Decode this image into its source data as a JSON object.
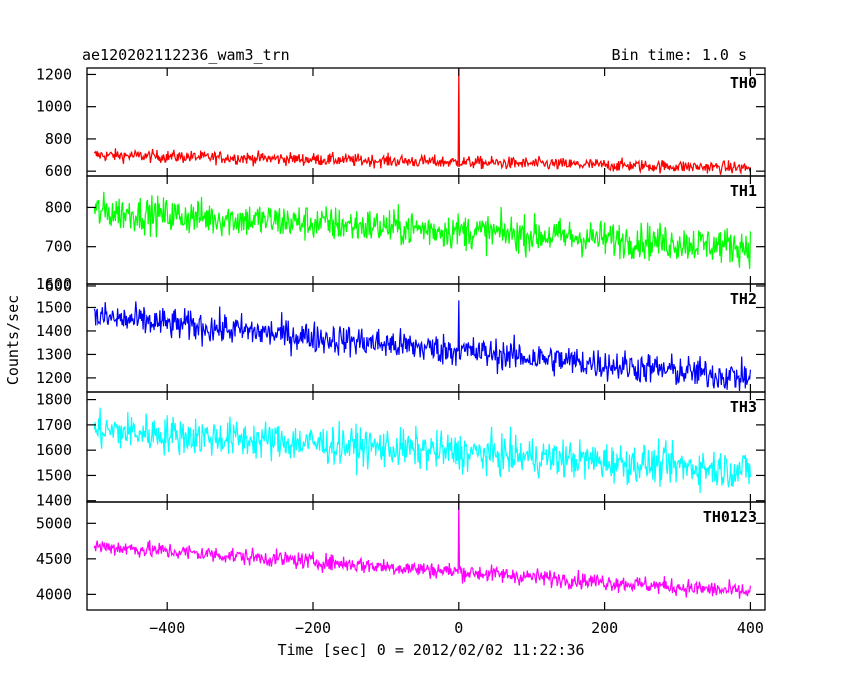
{
  "chart_data": {
    "type": "line",
    "title_left": "ae120202112236_wam3_trn",
    "title_right": "Bin time: 1.0 s",
    "xlabel": "Time [sec] 0 = 2012/02/02 11:22:36",
    "ylabel": "Counts/sec",
    "xlim": [
      -510,
      420
    ],
    "x_ticks": [
      -400,
      -200,
      0,
      200,
      400
    ],
    "x_tick_labels": [
      "−400",
      "−200",
      "0",
      "200",
      "400"
    ],
    "x_range_data": [
      -500,
      400
    ],
    "grid": false,
    "panels": [
      {
        "name": "TH0",
        "color": "#ff0000",
        "ylim": [
          570,
          1240
        ],
        "y_ticks": [
          600,
          800,
          1000,
          1200
        ],
        "trend_start": 700,
        "trend_end": 620,
        "noise": 28,
        "spike_x": 0,
        "spike_value": 1240
      },
      {
        "name": "TH1",
        "color": "#00ff00",
        "ylim": [
          605,
          880
        ],
        "y_ticks": [
          600,
          700,
          800
        ],
        "trend_start": 790,
        "trend_end": 700,
        "noise": 33,
        "spike_x": null,
        "spike_value": null
      },
      {
        "name": "TH2",
        "color": "#0000ff",
        "ylim": [
          1140,
          1600
        ],
        "y_ticks": [
          1200,
          1300,
          1400,
          1500,
          1600
        ],
        "trend_start": 1460,
        "trend_end": 1200,
        "noise": 48,
        "spike_x": 0,
        "spike_value": 1530
      },
      {
        "name": "TH3",
        "color": "#00ffff",
        "ylim": [
          1395,
          1830
        ],
        "y_ticks": [
          1400,
          1500,
          1600,
          1700,
          1800
        ],
        "trend_start": 1680,
        "trend_end": 1520,
        "noise": 55,
        "spike_x": null,
        "spike_value": null
      },
      {
        "name": "TH0123",
        "color": "#ff00ff",
        "ylim": [
          3780,
          5300
        ],
        "y_ticks": [
          4000,
          4500,
          5000
        ],
        "trend_start": 4680,
        "trend_end": 4030,
        "noise": 85,
        "spike_x": 0,
        "spike_value": 5300
      }
    ]
  }
}
